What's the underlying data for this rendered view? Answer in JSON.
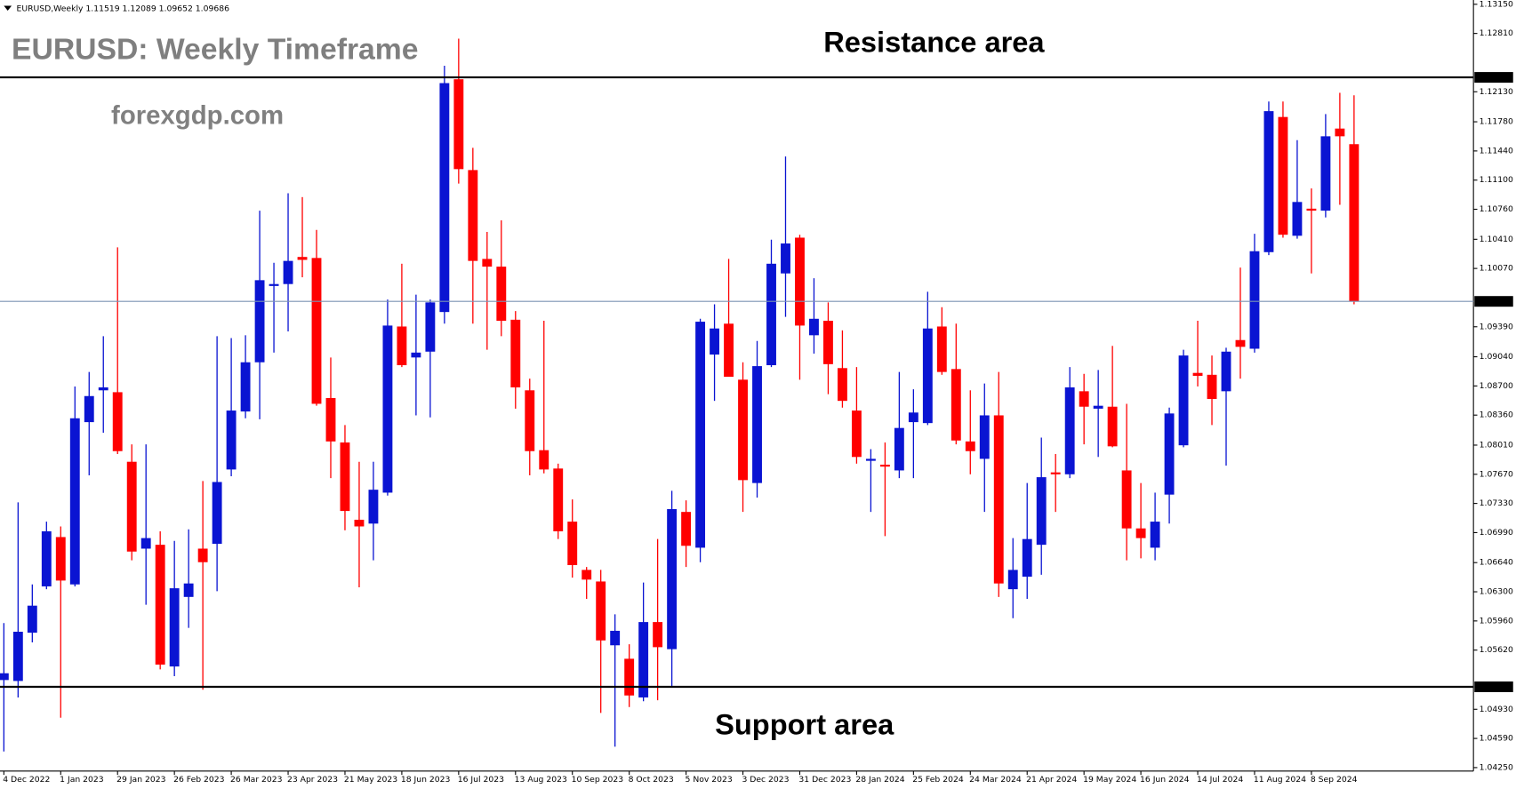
{
  "chart_data": {
    "type": "candlestick",
    "header": "EURUSD,Weekly  1.11519 1.12089 1.09652 1.09686",
    "title": "EURUSD: Weekly Timeframe",
    "watermark": "forexgdp.com",
    "annotations": [
      "Resistance area",
      "Support area"
    ],
    "categories": [
      "4 Dec 2022",
      null,
      null,
      null,
      "1 Jan 2023",
      null,
      null,
      null,
      "29 Jan 2023",
      null,
      null,
      null,
      "26 Feb 2023",
      null,
      null,
      null,
      "26 Mar 2023",
      null,
      null,
      null,
      "23 Apr 2023",
      null,
      null,
      null,
      "21 May 2023",
      null,
      null,
      null,
      "18 Jun 2023",
      null,
      null,
      null,
      "16 Jul 2023",
      null,
      null,
      null,
      "13 Aug 2023",
      null,
      null,
      null,
      "10 Sep 2023",
      null,
      null,
      null,
      "8 Oct 2023",
      null,
      null,
      null,
      "5 Nov 2023",
      null,
      null,
      null,
      "3 Dec 2023",
      null,
      null,
      null,
      "31 Dec 2023",
      null,
      null,
      null,
      "28 Jan 2024",
      null,
      null,
      null,
      "25 Feb 2024",
      null,
      null,
      null,
      "24 Mar 2024",
      null,
      null,
      null,
      "21 Apr 2024",
      null,
      null,
      null,
      "19 May 2024",
      null,
      null,
      null,
      "16 Jun 2024",
      null,
      null,
      null,
      "14 Jul 2024",
      null,
      null,
      null,
      "11 Aug 2024",
      null,
      null,
      null,
      "8 Sep 2024",
      null,
      null,
      null
    ],
    "open": [
      1.05271,
      1.0526,
      1.05823,
      1.06363,
      1.06938,
      1.06386,
      1.08278,
      1.08649,
      1.08627,
      1.07816,
      1.06803,
      1.06848,
      1.05429,
      1.0624,
      1.06803,
      1.06859,
      1.07726,
      1.08402,
      1.08976,
      1.09866,
      1.09888,
      1.10204,
      1.10192,
      1.08559,
      1.08041,
      1.0714,
      1.07095,
      1.07456,
      1.09393,
      1.09032,
      1.091,
      1.09562,
      1.12276,
      1.11217,
      1.10181,
      1.10091,
      1.09472,
      1.08649,
      1.07951,
      1.07737,
      1.07118,
      1.06555,
      1.0642,
      1.05676,
      1.05519,
      1.05068,
      1.05947,
      1.05631,
      1.07231,
      1.06814,
      1.09066,
      1.09426,
      1.08773,
      1.07568,
      1.08942,
      1.10012,
      1.10429,
      1.09291,
      1.0946,
      1.08908,
      1.08413,
      1.07827,
      1.07782,
      1.07715,
      1.08278,
      1.08267,
      1.09393,
      1.08897,
      1.08053,
      1.0785,
      1.08357,
      1.0633,
      1.06476,
      1.06848,
      1.07692,
      1.0767,
      1.08638,
      1.08435,
      1.08458,
      1.07715,
      1.07039,
      1.06814,
      1.07433,
      1.08008,
      1.08852,
      1.0883,
      1.08638,
      1.09235,
      1.09134,
      1.1026,
      1.11836,
      1.10451,
      1.10767,
      1.10744,
      1.11701,
      1.11519
    ],
    "high": [
      1.05935,
      1.07343,
      1.06386,
      1.07118,
      1.07062,
      1.08694,
      1.08863,
      1.0928,
      1.10316,
      1.08019,
      1.08019,
      1.07005,
      1.06893,
      1.07028,
      1.07591,
      1.0928,
      1.09258,
      1.09291,
      1.10744,
      1.10136,
      1.10947,
      1.10902,
      1.10519,
      1.09032,
      1.08244,
      1.07816,
      1.07816,
      1.09708,
      1.10125,
      1.09764,
      1.09708,
      1.12433,
      1.12749,
      1.11476,
      1.10496,
      1.10631,
      1.09573,
      1.08785,
      1.0946,
      1.07794,
      1.07377,
      1.06589,
      1.06555,
      1.06037,
      1.05688,
      1.06408,
      1.06915,
      1.07478,
      1.07366,
      1.09483,
      1.09652,
      1.10181,
      1.08976,
      1.09224,
      1.10406,
      1.11375,
      1.10463,
      1.09956,
      1.09674,
      1.09348,
      1.0892,
      1.07963,
      1.08041,
      1.08863,
      1.08661,
      1.09798,
      1.09618,
      1.09426,
      1.08649,
      1.08728,
      1.08863,
      1.06926,
      1.07568,
      1.08098,
      1.07906,
      1.0892,
      1.08841,
      1.08886,
      1.09167,
      1.08492,
      1.07568,
      1.07456,
      1.08447,
      1.09122,
      1.0946,
      1.09055,
      1.09145,
      1.1008,
      1.10474,
      1.12017,
      1.12017,
      1.11566,
      1.11003,
      1.1187,
      1.12118,
      1.12089
    ],
    "low": [
      1.04438,
      1.05068,
      1.0571,
      1.0633,
      1.04832,
      1.06363,
      1.07658,
      1.08154,
      1.07906,
      1.06667,
      1.06149,
      1.05395,
      1.05316,
      1.05879,
      1.05158,
      1.06307,
      1.07647,
      1.08323,
      1.08312,
      1.09089,
      1.09336,
      1.09967,
      1.08469,
      1.07625,
      1.07017,
      1.06352,
      1.06667,
      1.07422,
      1.0892,
      1.08357,
      1.08334,
      1.09426,
      1.11059,
      1.09426,
      1.09122,
      1.0928,
      1.08435,
      1.07658,
      1.07681,
      1.06915,
      1.06465,
      1.06217,
      1.04888,
      1.04494,
      1.04956,
      1.05023,
      1.05035,
      1.05181,
      1.06589,
      1.06645,
      1.08526,
      1.08807,
      1.07231,
      1.07399,
      1.0892,
      1.09505,
      1.08773,
      1.09077,
      1.08604,
      1.08447,
      1.07794,
      1.07231,
      1.06949,
      1.07625,
      1.07625,
      1.08244,
      1.0883,
      1.08019,
      1.0767,
      1.07231,
      1.0624,
      1.05992,
      1.06217,
      1.06499,
      1.07231,
      1.07625,
      1.08019,
      1.07872,
      1.07985,
      1.06667,
      1.0669,
      1.06667,
      1.07095,
      1.07985,
      1.08694,
      1.08244,
      1.07771,
      1.08785,
      1.09089,
      1.10226,
      1.10429,
      1.10417,
      1.10012,
      1.10665,
      1.10812,
      1.09652
    ],
    "close": [
      1.0535,
      1.05834,
      1.06138,
      1.07005,
      1.06431,
      1.08323,
      1.08582,
      1.08683,
      1.0794,
      1.06769,
      1.06926,
      1.05451,
      1.06341,
      1.06397,
      1.06645,
      1.0758,
      1.08413,
      1.08976,
      1.09933,
      1.09888,
      1.10158,
      1.1017,
      1.08492,
      1.08053,
      1.07242,
      1.07062,
      1.0749,
      1.09404,
      1.08942,
      1.09089,
      1.09674,
      1.12231,
      1.11228,
      1.10158,
      1.10091,
      1.0946,
      1.08683,
      1.0794,
      1.07726,
      1.07005,
      1.06611,
      1.06442,
      1.05733,
      1.05845,
      1.05091,
      1.05947,
      1.05654,
      1.07264,
      1.06836,
      1.09449,
      1.0937,
      1.08807,
      1.07602,
      1.08931,
      1.10125,
      1.10361,
      1.09404,
      1.09483,
      1.08954,
      1.08526,
      1.07872,
      1.0785,
      1.0776,
      1.0821,
      1.0839,
      1.0937,
      1.08863,
      1.08064,
      1.0794,
      1.08357,
      1.06397,
      1.06555,
      1.06915,
      1.07636,
      1.0767,
      1.08683,
      1.08458,
      1.08469,
      1.07996,
      1.07039,
      1.06926,
      1.07118,
      1.08379,
      1.09055,
      1.08818,
      1.08548,
      1.091,
      1.09156,
      1.10271,
      1.11904,
      1.10463,
      1.10845,
      1.10744,
      1.11611,
      1.11611,
      1.09686
    ],
    "up_color": "#0a14d2",
    "down_color": "#ff0000",
    "ylim": [
      1.0421,
      1.132
    ],
    "yticks": [
      {
        "value": 1.1315,
        "label": "1.13150"
      },
      {
        "value": 1.1281,
        "label": "1.12810"
      },
      {
        "value": 1.1213,
        "label": "1.12130"
      },
      {
        "value": 1.1178,
        "label": "1.11780"
      },
      {
        "value": 1.1144,
        "label": "1.11440"
      },
      {
        "value": 1.111,
        "label": "1.11100"
      },
      {
        "value": 1.1076,
        "label": "1.10760"
      },
      {
        "value": 1.1041,
        "label": "1.10410"
      },
      {
        "value": 1.1007,
        "label": "1.10070"
      },
      {
        "value": 1.0939,
        "label": "1.09390"
      },
      {
        "value": 1.0904,
        "label": "1.09040"
      },
      {
        "value": 1.087,
        "label": "1.08700"
      },
      {
        "value": 1.0836,
        "label": "1.08360"
      },
      {
        "value": 1.0801,
        "label": "1.08010"
      },
      {
        "value": 1.0767,
        "label": "1.07670"
      },
      {
        "value": 1.0733,
        "label": "1.07330"
      },
      {
        "value": 1.0699,
        "label": "1.06990"
      },
      {
        "value": 1.0664,
        "label": "1.06640"
      },
      {
        "value": 1.063,
        "label": "1.06300"
      },
      {
        "value": 1.0596,
        "label": "1.05960"
      },
      {
        "value": 1.0562,
        "label": "1.05620"
      },
      {
        "value": 1.0493,
        "label": "1.04930"
      },
      {
        "value": 1.0459,
        "label": "1.04590"
      },
      {
        "value": 1.0425,
        "label": "1.04250"
      }
    ],
    "horizontal_lines": [
      {
        "value": 1.12298,
        "color": "#000000",
        "width": 2
      },
      {
        "value": 1.05192,
        "color": "#000000",
        "width": 2
      },
      {
        "value": 1.09686,
        "color": "#7b93b4",
        "width": 1
      }
    ],
    "grid": false
  }
}
